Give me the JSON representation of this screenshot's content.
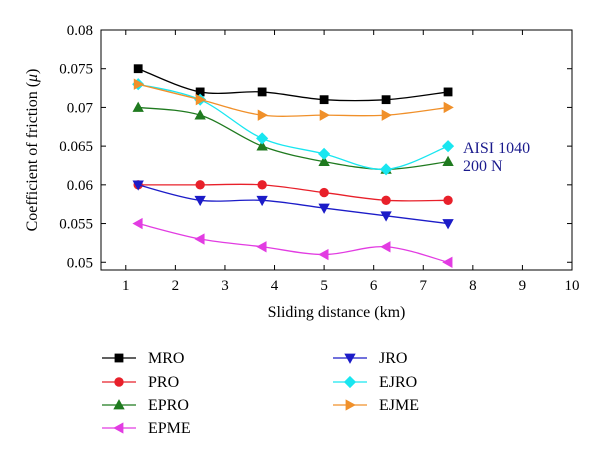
{
  "chart_data": {
    "type": "line",
    "xlabel": "Sliding distance (km)",
    "ylabel_prefix": "Coefficient of friction (",
    "ylabel_symbol": "μ",
    "ylabel_suffix": ")",
    "xlim": [
      0.5,
      10
    ],
    "ylim": [
      0.049,
      0.08
    ],
    "xticks": [
      1,
      2,
      3,
      4,
      5,
      6,
      7,
      8,
      9,
      10
    ],
    "yticks": [
      0.05,
      0.055,
      0.06,
      0.065,
      0.07,
      0.075,
      0.08
    ],
    "ytick_labels": [
      "0.05",
      "0.055",
      "0.06",
      "0.065",
      "0.07",
      "0.075",
      "0.08"
    ],
    "grid": false,
    "legend_position": "bottom",
    "x": [
      1.25,
      2.5,
      3.75,
      5,
      6.25,
      7.5
    ],
    "annotations": [
      "AISI 1040",
      "200 N"
    ],
    "series": [
      {
        "name": "MRO",
        "color": "#000000",
        "marker": "square",
        "values": [
          0.075,
          0.072,
          0.072,
          0.071,
          0.071,
          0.072
        ]
      },
      {
        "name": "PRO",
        "color": "#e8202a",
        "marker": "circle",
        "values": [
          0.06,
          0.06,
          0.06,
          0.059,
          0.058,
          0.058
        ]
      },
      {
        "name": "EPRO",
        "color": "#1f7a1f",
        "marker": "triangle-up",
        "values": [
          0.07,
          0.069,
          0.065,
          0.063,
          0.062,
          0.063
        ]
      },
      {
        "name": "EPME",
        "color": "#e23ce2",
        "marker": "triangle-left",
        "values": [
          0.055,
          0.053,
          0.052,
          0.051,
          0.052,
          0.05
        ]
      },
      {
        "name": "JRO",
        "color": "#1c1cc8",
        "marker": "triangle-down",
        "values": [
          0.06,
          0.058,
          0.058,
          0.057,
          0.056,
          0.055
        ]
      },
      {
        "name": "EJRO",
        "color": "#19e6f0",
        "marker": "diamond",
        "values": [
          0.073,
          0.071,
          0.066,
          0.064,
          0.062,
          0.065
        ]
      },
      {
        "name": "EJME",
        "color": "#f0902a",
        "marker": "triangle-right",
        "values": [
          0.073,
          0.071,
          0.069,
          0.069,
          0.069,
          0.07
        ]
      }
    ]
  }
}
